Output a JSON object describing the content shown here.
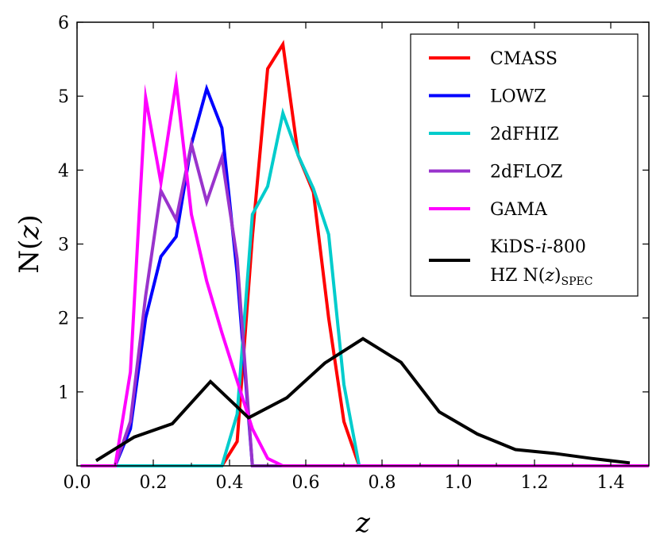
{
  "chart_data": {
    "type": "line",
    "title": "",
    "xlabel": "z",
    "ylabel": "N(z)",
    "xlim": [
      0.0,
      1.5
    ],
    "ylim": [
      0,
      6
    ],
    "xticks": [
      "0.0",
      "0.2",
      "0.4",
      "0.6",
      "0.8",
      "1.0",
      "1.2",
      "1.4"
    ],
    "yticks": [
      "1",
      "2",
      "3",
      "4",
      "5",
      "6"
    ],
    "legend_position": "top-right",
    "series": [
      {
        "name": "CMASS",
        "color": "#ff0000",
        "x": [
          0.01,
          0.38,
          0.42,
          0.46,
          0.5,
          0.54,
          0.58,
          0.62,
          0.66,
          0.7,
          0.74,
          1.5
        ],
        "y": [
          0,
          0,
          0.33,
          3.1,
          5.37,
          5.7,
          4.2,
          3.7,
          2.0,
          0.6,
          0,
          0
        ]
      },
      {
        "name": "LOWZ",
        "color": "#0000ff",
        "x": [
          0.01,
          0.1,
          0.14,
          0.18,
          0.22,
          0.26,
          0.3,
          0.34,
          0.38,
          0.42,
          0.46,
          1.5
        ],
        "y": [
          0,
          0,
          0.5,
          2.0,
          2.83,
          3.1,
          4.35,
          5.1,
          4.57,
          2.6,
          0,
          0
        ]
      },
      {
        "name": "2dFHIZ",
        "color": "#00cccc",
        "x": [
          0.01,
          0.38,
          0.42,
          0.46,
          0.5,
          0.54,
          0.58,
          0.62,
          0.66,
          0.7,
          0.74,
          1.5
        ],
        "y": [
          0,
          0,
          0.7,
          3.4,
          3.78,
          4.77,
          4.2,
          3.75,
          3.13,
          1.1,
          0,
          0
        ]
      },
      {
        "name": "2dFLOZ",
        "color": "#9933cc",
        "x": [
          0.01,
          0.1,
          0.14,
          0.18,
          0.22,
          0.26,
          0.3,
          0.34,
          0.38,
          0.42,
          0.46,
          1.5
        ],
        "y": [
          0,
          0,
          0.6,
          2.3,
          3.72,
          3.33,
          4.35,
          3.57,
          4.17,
          2.8,
          0,
          0
        ]
      },
      {
        "name": "GAMA",
        "color": "#ff00ff",
        "x": [
          0.01,
          0.1,
          0.14,
          0.18,
          0.22,
          0.26,
          0.3,
          0.34,
          0.38,
          0.42,
          0.46,
          0.5,
          0.54,
          1.5
        ],
        "y": [
          0,
          0,
          1.27,
          4.98,
          3.83,
          5.19,
          3.4,
          2.5,
          1.8,
          1.15,
          0.5,
          0.1,
          0,
          0
        ]
      },
      {
        "name": "KiDS-i-800 HZ N(z)SPEC",
        "color": "#000000",
        "x": [
          0.05,
          0.15,
          0.25,
          0.35,
          0.45,
          0.55,
          0.65,
          0.75,
          0.85,
          0.95,
          1.05,
          1.15,
          1.25,
          1.35,
          1.45
        ],
        "y": [
          0.07,
          0.39,
          0.57,
          1.14,
          0.65,
          0.92,
          1.39,
          1.72,
          1.4,
          0.73,
          0.43,
          0.22,
          0.17,
          0.1,
          0.04
        ]
      }
    ],
    "legend": {
      "entries": [
        {
          "label": "CMASS",
          "color": "#ff0000"
        },
        {
          "label": "LOWZ",
          "color": "#0000ff"
        },
        {
          "label": "2dFHIZ",
          "color": "#00cccc"
        },
        {
          "label": "2dFLOZ",
          "color": "#9933cc"
        },
        {
          "label": "GAMA",
          "color": "#ff00ff"
        }
      ],
      "kids": {
        "color": "#000000",
        "line1_prefix": "KiDS-",
        "line1_italic": "i",
        "line1_suffix": "-800",
        "line2_prefix": "HZ N(",
        "line2_italic": "z",
        "line2_close": ")",
        "line2_sub": "SPEC"
      }
    }
  }
}
